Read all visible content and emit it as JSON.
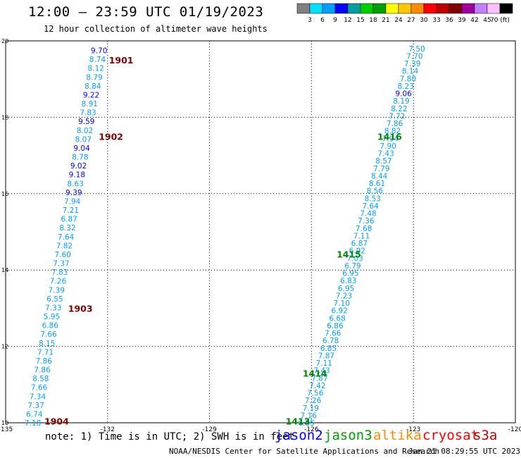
{
  "header": {
    "title": "12:00 – 23:59 UTC 01/19/2023",
    "subtitle": "12 hour collection of altimeter wave heights"
  },
  "colorbar": {
    "colors": [
      "#808080",
      "#00e0ff",
      "#00a0ff",
      "#0000ff",
      "#00a0a0",
      "#00d000",
      "#00a000",
      "#ffff00",
      "#ffc800",
      "#ff8c00",
      "#ff0000",
      "#c00000",
      "#800000",
      "#a000a0",
      "#c080ff",
      "#ffc0ff",
      "#000000"
    ],
    "labels": [
      "3",
      "6",
      "9",
      "12",
      "15",
      "18",
      "21",
      "24",
      "27",
      "30",
      "33",
      "36",
      "39",
      "42",
      "45",
      "70 (ft)"
    ]
  },
  "footer": {
    "note": "note: 1) Time is in UTC; 2) SWH is in feet",
    "missions": [
      {
        "name": "jason2",
        "color": "#0000ff"
      },
      {
        "name": "jason3",
        "color": "#00a000"
      },
      {
        "name": "altika",
        "color": "#ff8c00"
      },
      {
        "name": "cryosat",
        "color": "#ff0000"
      },
      {
        "name": "s3a",
        "color": "#c00000"
      }
    ],
    "credit": "NOAA/NESDIS Center for Satellite Applications and Research",
    "timestamp": "Jan 21 08:29:55 UTC 2023"
  },
  "chart_data": {
    "type": "scatter",
    "xlim": [
      -135,
      -120
    ],
    "ylim": [
      10,
      20
    ],
    "x_ticks": [
      "-135",
      "-132",
      "-129",
      "-126",
      "-123",
      "-120"
    ],
    "x_tick_values": [
      -135,
      -132,
      -129,
      -126,
      -123,
      -120
    ],
    "y_ticks": [
      "10",
      "12",
      "14",
      "16",
      "18",
      "20"
    ],
    "y_tick_values": [
      10,
      12,
      14,
      16,
      18,
      20
    ],
    "grid": true,
    "tracks": [
      {
        "name": "west",
        "x_start": -132.25,
        "y_start": 19.75,
        "x_end": -134.2,
        "y_end": 10.0,
        "values": [
          "9.70",
          "8.74",
          "8.12",
          "8.79",
          "8.84",
          "9.22",
          "8.91",
          "7.83",
          "9.59",
          "8.02",
          "8.07",
          "9.04",
          "8.78",
          "9.02",
          "9.18",
          "8.63",
          "9.39",
          "7.94",
          "7.21",
          "6.87",
          "8.32",
          "7.64",
          "7.82",
          "7.60",
          "7.37",
          "7.83",
          "7.26",
          "7.39",
          "6.55",
          "7.33",
          "5.95",
          "6.86",
          "7.66",
          "8.15",
          "7.71",
          "7.86",
          "7.86",
          "8.58",
          "7.66",
          "7.34",
          "7.37",
          "6.74",
          "7.18"
        ],
        "time_labels": [
          {
            "text": "1901",
            "x": -131.6,
            "y": 19.5
          },
          {
            "text": "1902",
            "x": -131.9,
            "y": 17.5
          },
          {
            "text": "1903",
            "x": -132.8,
            "y": 13.0
          },
          {
            "text": "1904",
            "x": -133.5,
            "y": 10.05
          }
        ]
      },
      {
        "name": "east",
        "x_start": -122.9,
        "y_start": 19.8,
        "x_end": -126.15,
        "y_end": 10.0,
        "values": [
          "7.50",
          "7.70",
          "7.39",
          "8.14",
          "7.80",
          "8.23",
          "9.06",
          "8.19",
          "8.22",
          "7.72",
          "7.86",
          "8.82",
          "7.94",
          "7.90",
          "7.43",
          "8.57",
          "7.79",
          "8.44",
          "8.61",
          "8.56",
          "8.53",
          "7.64",
          "7.48",
          "7.36",
          "7.68",
          "7.11",
          "6.87",
          "6.92",
          "7.03",
          "6.79",
          "6.95",
          "6.83",
          "6.95",
          "7.23",
          "7.10",
          "6.92",
          "6.68",
          "6.86",
          "7.66",
          "6.78",
          "6.85",
          "7.87",
          "7.11",
          "7.43",
          "7.87",
          "7.42",
          "7.56",
          "7.26",
          "7.19",
          "7.16",
          "6.85"
        ],
        "time_labels": [
          {
            "text": "1416",
            "x": -123.7,
            "y": 17.5
          },
          {
            "text": "1415",
            "x": -124.9,
            "y": 14.42
          },
          {
            "text": "1414",
            "x": -125.9,
            "y": 11.3
          },
          {
            "text": "1413",
            "x": -126.4,
            "y": 10.05
          }
        ]
      }
    ]
  }
}
